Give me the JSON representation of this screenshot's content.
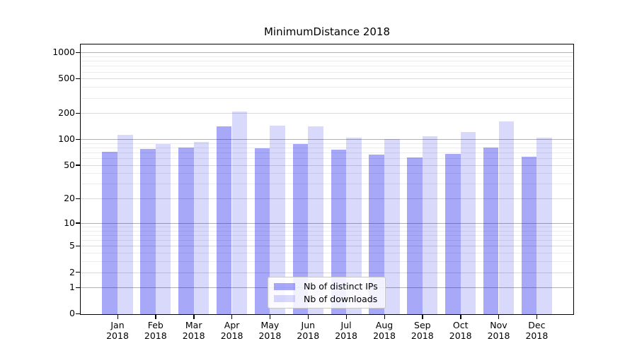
{
  "chart_data": {
    "type": "bar",
    "title": "MinimumDistance 2018",
    "categories": [
      {
        "month": "Jan",
        "year": "2018"
      },
      {
        "month": "Feb",
        "year": "2018"
      },
      {
        "month": "Mar",
        "year": "2018"
      },
      {
        "month": "Apr",
        "year": "2018"
      },
      {
        "month": "May",
        "year": "2018"
      },
      {
        "month": "Jun",
        "year": "2018"
      },
      {
        "month": "Jul",
        "year": "2018"
      },
      {
        "month": "Aug",
        "year": "2018"
      },
      {
        "month": "Sep",
        "year": "2018"
      },
      {
        "month": "Oct",
        "year": "2018"
      },
      {
        "month": "Nov",
        "year": "2018"
      },
      {
        "month": "Dec",
        "year": "2018"
      }
    ],
    "series": [
      {
        "name": "Nb of distinct IPs",
        "color": "rgba(0,0,238,0.34)",
        "solid_color_hex": "#a8a8f8",
        "values": [
          71,
          77,
          80,
          140,
          79,
          88,
          75,
          66,
          61,
          68,
          80,
          62
        ]
      },
      {
        "name": "Nb of downloads",
        "color": "rgba(0,0,238,0.15)",
        "solid_color_hex": "#d8d8fa",
        "values": [
          112,
          88,
          93,
          210,
          144,
          140,
          104,
          101,
          109,
          122,
          160,
          105
        ]
      }
    ],
    "y_axis": {
      "scale": "symlog",
      "tick_values": [
        0,
        1,
        2,
        5,
        10,
        20,
        50,
        100,
        200,
        500,
        1000
      ],
      "tick_labels": [
        "0",
        "1",
        "2",
        "5",
        "10",
        "20",
        "50",
        "100",
        "200",
        "500",
        "1000"
      ],
      "ylim": [
        0,
        1260
      ],
      "major_grid_values": [
        1,
        10,
        100,
        1000
      ],
      "mid_grid_values": [
        2,
        5,
        20,
        50,
        200,
        500
      ]
    },
    "grid": true,
    "legend": {
      "position": "lower center",
      "items": [
        "Nb of distinct IPs",
        "Nb of downloads"
      ]
    },
    "colors": {
      "grid_major": "#b0b0b0",
      "grid_mid": "#dadada",
      "grid_minor": "#ececec",
      "spine": "#000000"
    }
  }
}
